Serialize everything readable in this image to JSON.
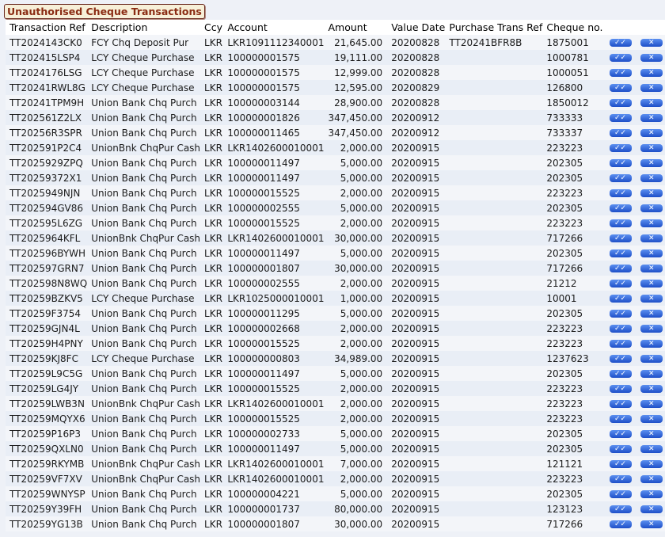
{
  "title": "Unauthorised Cheque Transactions",
  "columns": [
    "Transaction Ref",
    "Description",
    "Ccy",
    "Account",
    "Amount",
    "Value Date",
    "Purchase Trans Ref",
    "Cheque no."
  ],
  "icons": {
    "authorise": "check-icon",
    "reject": "close-icon"
  },
  "rows": [
    [
      "TT2024143CK0",
      "FCY Chq Deposit Pur",
      "LKR",
      "LKR1091112340001",
      "21,645.00",
      "20200828",
      "TT20241BFR8B",
      "1875001"
    ],
    [
      "TT202415LSP4",
      "LCY Cheque Purchase",
      "LKR",
      "100000001575",
      "19,111.00",
      "20200828",
      "",
      "1000781"
    ],
    [
      "TT2024176LSG",
      "LCY Cheque Purchase",
      "LKR",
      "100000001575",
      "12,999.00",
      "20200828",
      "",
      "1000051"
    ],
    [
      "TT20241RWL8G",
      "LCY Cheque Purchase",
      "LKR",
      "100000001575",
      "12,595.00",
      "20200829",
      "",
      "126800"
    ],
    [
      "TT20241TPM9H",
      "Union Bank Chq Purch",
      "LKR",
      "100000003144",
      "28,900.00",
      "20200828",
      "",
      "1850012"
    ],
    [
      "TT202561Z2LX",
      "Union Bank Chq Purch",
      "LKR",
      "100000001826",
      "347,450.00",
      "20200912",
      "",
      "733333"
    ],
    [
      "TT20256R3SPR",
      "Union Bank Chq Purch",
      "LKR",
      "100000011465",
      "347,450.00",
      "20200912",
      "",
      "733337"
    ],
    [
      "TT202591P2C4",
      "UnionBnk ChqPur Cash",
      "LKR",
      "LKR1402600010001",
      "2,000.00",
      "20200915",
      "",
      "223223"
    ],
    [
      "TT2025929ZPQ",
      "Union Bank Chq Purch",
      "LKR",
      "100000011497",
      "5,000.00",
      "20200915",
      "",
      "202305"
    ],
    [
      "TT20259372X1",
      "Union Bank Chq Purch",
      "LKR",
      "100000011497",
      "5,000.00",
      "20200915",
      "",
      "202305"
    ],
    [
      "TT202594 9NJN",
      "Union Bank Chq Purch",
      "LKR",
      "100000015525",
      "2,000.00",
      "20200915",
      "",
      "223223"
    ],
    [
      "TT202594GV86",
      "Union Bank Chq Purch",
      "LKR",
      "100000002555",
      "5,000.00",
      "20200915",
      "",
      "202305"
    ],
    [
      "TT202595L6ZG",
      "Union Bank Chq Purch",
      "LKR",
      "100000015525",
      "2,000.00",
      "20200915",
      "",
      "223223"
    ],
    [
      "TT202596 4KFL",
      "UnionBnk ChqPur Cash",
      "LKR",
      "LKR1402600010001",
      "30,000.00",
      "20200915",
      "",
      "717266"
    ],
    [
      "TT202596BYWH",
      "Union Bank Chq Purch",
      "LKR",
      "100000011497",
      "5,000.00",
      "20200915",
      "",
      "202305"
    ],
    [
      "TT202597GRN7",
      "Union Bank Chq Purch",
      "LKR",
      "100000001807",
      "30,000.00",
      "20200915",
      "",
      "717266"
    ],
    [
      "TT202598N8WQ",
      "Union Bank Chq Purch",
      "LKR",
      "100000002555",
      "2,000.00",
      "20200915",
      "",
      "21212"
    ],
    [
      "TT20259BZKV5",
      "LCY Cheque Purchase",
      "LKR",
      "LKR1025000010001",
      "1,000.00",
      "20200915",
      "",
      "10001"
    ],
    [
      "TT20259F3754",
      "Union Bank Chq Purch",
      "LKR",
      "100000011295",
      "5,000.00",
      "20200915",
      "",
      "202305"
    ],
    [
      "TT20259GJN4L",
      "Union Bank Chq Purch",
      "LKR",
      "100000002668",
      "2,000.00",
      "20200915",
      "",
      "223223"
    ],
    [
      "TT20259H4PNY",
      "Union Bank Chq Purch",
      "LKR",
      "100000015525",
      "2,000.00",
      "20200915",
      "",
      "223223"
    ],
    [
      "TT20259KJ8FC",
      "LCY Cheque Purchase",
      "LKR",
      "100000000803",
      "34,989.00",
      "20200915",
      "",
      "1237623"
    ],
    [
      "TT20259L9C5G",
      "Union Bank Chq Purch",
      "LKR",
      "100000011497",
      "5,000.00",
      "20200915",
      "",
      "202305"
    ],
    [
      "TT20259LG4JY",
      "Union Bank Chq Purch",
      "LKR",
      "100000015525",
      "2,000.00",
      "20200915",
      "",
      "223223"
    ],
    [
      "TT20259LWB3N",
      "UnionBnk ChqPur Cash",
      "LKR",
      "LKR1402600010001",
      "2,000.00",
      "20200915",
      "",
      "223223"
    ],
    [
      "TT20259MQYX6",
      "Union Bank Chq Purch",
      "LKR",
      "100000015525",
      "2,000.00",
      "20200915",
      "",
      "223223"
    ],
    [
      "TT20259P16P3",
      "Union Bank Chq Purch",
      "LKR",
      "100000002733",
      "5,000.00",
      "20200915",
      "",
      "202305"
    ],
    [
      "TT20259QXLN0",
      "Union Bank Chq Purch",
      "LKR",
      "100000011497",
      "5,000.00",
      "20200915",
      "",
      "202305"
    ],
    [
      "TT20259RKYMB",
      "UnionBnk ChqPur Cash",
      "LKR",
      "LKR1402600010001",
      "7,000.00",
      "20200915",
      "",
      "121121"
    ],
    [
      "TT20259VF7XV",
      "UnionBnk ChqPur Cash",
      "LKR",
      "LKR1402600010001",
      "2,000.00",
      "20200915",
      "",
      "223223"
    ],
    [
      "TT20259WNYSP",
      "Union Bank Chq Purch",
      "LKR",
      "100000004221",
      "5,000.00",
      "20200915",
      "",
      "202305"
    ],
    [
      "TT20259Y39FH",
      "Union Bank Chq Purch",
      "LKR",
      "100000001737",
      "80,000.00",
      "20200915",
      "",
      "123123"
    ],
    [
      "TT20259YG13B",
      "Union Bank Chq Purch",
      "LKR",
      "100000001807",
      "30,000.00",
      "20200915",
      "",
      "717266"
    ]
  ]
}
